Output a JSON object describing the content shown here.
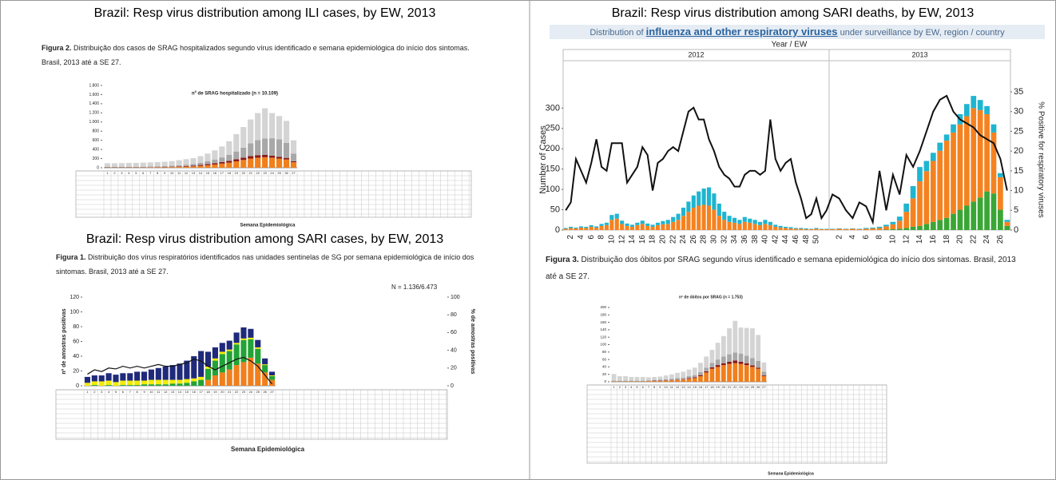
{
  "chart_data": [
    {
      "type": "bar",
      "heading": "Brazil: Resp virus distribution among ILI cases, by EW, 2013",
      "caption_label": "Figura 2.",
      "caption": "Distribuição dos casos de SRAG hospitalizados segundo vírus identificado e semana epidemiológica do início dos sintomas. Brasil, 2013 até a SE 27.",
      "title": "nº de SRAG hospitalizado (n = 10.109)",
      "xlabel": "Semana Epidemiológica",
      "categories": [
        1,
        2,
        3,
        4,
        5,
        6,
        7,
        8,
        9,
        10,
        11,
        12,
        13,
        14,
        15,
        16,
        17,
        18,
        19,
        20,
        21,
        22,
        23,
        24,
        25,
        26,
        27
      ],
      "series": [
        {
          "color": "#f07f1c",
          "values": [
            5,
            5,
            5,
            5,
            6,
            6,
            8,
            10,
            12,
            15,
            20,
            25,
            30,
            40,
            55,
            70,
            90,
            110,
            140,
            170,
            200,
            220,
            230,
            220,
            200,
            180,
            120
          ]
        },
        {
          "color": "#8b1a1a",
          "values": [
            3,
            3,
            3,
            3,
            3,
            4,
            4,
            5,
            6,
            8,
            10,
            12,
            15,
            20,
            25,
            30,
            35,
            40,
            45,
            50,
            55,
            55,
            50,
            45,
            40,
            35,
            20
          ]
        },
        {
          "color": "#a8a8a8",
          "values": [
            10,
            10,
            10,
            12,
            12,
            12,
            15,
            15,
            18,
            20,
            25,
            30,
            35,
            45,
            60,
            80,
            100,
            130,
            170,
            220,
            280,
            330,
            360,
            380,
            380,
            330,
            170
          ]
        },
        {
          "color": "#d4d4d4",
          "values": [
            80,
            80,
            82,
            85,
            85,
            88,
            90,
            92,
            95,
            100,
            110,
            120,
            130,
            150,
            170,
            200,
            240,
            300,
            380,
            450,
            520,
            590,
            660,
            550,
            510,
            480,
            290
          ]
        }
      ],
      "ylim": [
        0,
        1800
      ],
      "yticks": [
        0,
        200,
        400,
        600,
        800,
        {
          "value": 1000,
          "label": "1.000"
        },
        {
          "value": 1200,
          "label": "1.200"
        },
        {
          "value": 1400,
          "label": "1.400"
        },
        {
          "value": 1600,
          "label": "1.600"
        },
        {
          "value": 1800,
          "label": "1.800"
        }
      ]
    },
    {
      "type": "bar",
      "heading": "Brazil: Resp virus distribution among SARI cases, by EW, 2013",
      "caption_label": "Figura 1.",
      "caption": "Distribuição dos vírus respiratórios identificados nas unidades sentinelas de SG por semana epidemiológica de início dos sintomas. Brasil, 2013 até a SE 27.",
      "annotation": "N = 1.136/6.473",
      "ylabel": "nº de amostras positivas",
      "y2label": "% de amostras positivas",
      "xlabel": "Semana Epidemiológica",
      "categories": [
        1,
        2,
        3,
        4,
        5,
        6,
        7,
        8,
        9,
        10,
        11,
        12,
        13,
        14,
        15,
        16,
        17,
        18,
        19,
        20,
        21,
        22,
        23,
        24,
        25,
        26,
        27
      ],
      "series": [
        {
          "color": "#f07f1c",
          "values": [
            0,
            0,
            0,
            0,
            0,
            0,
            0,
            0,
            0,
            0,
            0,
            0,
            0,
            0,
            0,
            0,
            0,
            8,
            14,
            18,
            22,
            28,
            32,
            38,
            30,
            18,
            8
          ]
        },
        {
          "color": "#22a336",
          "values": [
            0,
            1,
            0,
            1,
            0,
            1,
            1,
            1,
            2,
            2,
            2,
            2,
            3,
            3,
            4,
            6,
            8,
            15,
            20,
            25,
            25,
            28,
            30,
            25,
            20,
            10,
            5
          ]
        },
        {
          "color": "#f2ec00",
          "values": [
            4,
            5,
            6,
            6,
            5,
            6,
            6,
            6,
            5,
            6,
            6,
            6,
            5,
            5,
            5,
            4,
            4,
            3,
            3,
            3,
            2,
            2,
            2,
            2,
            2,
            1,
            1
          ]
        },
        {
          "color": "#1f2a7a",
          "values": [
            8,
            8,
            8,
            10,
            10,
            10,
            10,
            12,
            12,
            14,
            16,
            18,
            20,
            22,
            25,
            30,
            35,
            20,
            15,
            12,
            12,
            14,
            15,
            12,
            10,
            8,
            5
          ]
        },
        {
          "type": "line",
          "axis": "y2",
          "color": "#111111",
          "values": [
            13,
            18,
            16,
            20,
            19,
            22,
            20,
            22,
            20,
            22,
            24,
            22,
            22,
            24,
            26,
            30,
            28,
            22,
            18,
            22,
            26,
            30,
            32,
            28,
            22,
            12,
            2
          ]
        }
      ],
      "ylim": [
        0,
        120
      ],
      "yticks": [
        0,
        20,
        40,
        60,
        80,
        100,
        120
      ],
      "y2lim": [
        0,
        100
      ],
      "y2ticks": [
        0,
        20,
        40,
        60,
        80,
        100
      ]
    },
    {
      "type": "bar",
      "heading": "Brazil: Resp virus distribution among SARI deaths, by EW, 2013",
      "title": [
        "Distribution of",
        "influenza and other respiratory viruses",
        "under surveillance by EW, region / country"
      ],
      "year_label": "Year / EW",
      "ylabel": "Number of Cases",
      "y2label": "% Positive for respiratory viruses",
      "groups": [
        {
          "label": "2012",
          "categories": [
            null,
            2,
            null,
            4,
            null,
            6,
            null,
            8,
            null,
            10,
            null,
            12,
            null,
            14,
            null,
            16,
            null,
            18,
            null,
            20,
            null,
            22,
            null,
            24,
            null,
            26,
            null,
            28,
            null,
            30,
            null,
            32,
            null,
            34,
            null,
            36,
            null,
            38,
            null,
            40,
            null,
            42,
            null,
            44,
            null,
            46,
            null,
            48,
            null,
            50,
            null,
            null
          ]
        },
        {
          "label": "2013",
          "categories": [
            null,
            2,
            null,
            4,
            null,
            6,
            null,
            8,
            null,
            10,
            null,
            12,
            null,
            14,
            null,
            16,
            null,
            18,
            null,
            20,
            null,
            22,
            null,
            24,
            null,
            26,
            null
          ]
        }
      ],
      "series": [
        {
          "color": "#3aa635",
          "values": [
            0,
            0,
            0,
            0,
            0,
            0,
            0,
            0,
            0,
            0,
            0,
            0,
            0,
            0,
            0,
            0,
            0,
            0,
            0,
            0,
            0,
            0,
            0,
            0,
            0,
            0,
            0,
            0,
            0,
            0,
            0,
            0,
            0,
            0,
            0,
            0,
            0,
            0,
            0,
            0,
            0,
            0,
            0,
            0,
            0,
            0,
            0,
            0,
            0,
            0,
            0,
            0,
            0,
            0,
            0,
            0,
            0,
            0,
            0,
            0,
            1,
            2,
            3,
            5,
            8,
            10,
            15,
            20,
            25,
            30,
            40,
            50,
            60,
            70,
            80,
            95,
            90,
            50,
            10
          ]
        },
        {
          "color": "#f58220",
          "values": [
            3,
            5,
            4,
            6,
            5,
            8,
            6,
            10,
            12,
            25,
            28,
            15,
            10,
            8,
            12,
            15,
            10,
            8,
            12,
            14,
            15,
            20,
            25,
            35,
            45,
            55,
            60,
            62,
            60,
            50,
            35,
            25,
            20,
            18,
            15,
            20,
            18,
            15,
            12,
            15,
            12,
            8,
            6,
            5,
            4,
            3,
            3,
            2,
            2,
            3,
            2,
            2,
            2,
            3,
            2,
            3,
            2,
            3,
            4,
            5,
            8,
            12,
            20,
            40,
            70,
            110,
            130,
            150,
            170,
            190,
            200,
            210,
            220,
            230,
            215,
            190,
            150,
            80,
            10
          ]
        },
        {
          "color": "#1fb5d0",
          "values": [
            2,
            3,
            2,
            3,
            3,
            4,
            3,
            5,
            6,
            12,
            12,
            8,
            6,
            5,
            6,
            8,
            6,
            5,
            6,
            8,
            10,
            12,
            15,
            20,
            25,
            30,
            35,
            40,
            45,
            40,
            30,
            20,
            15,
            12,
            10,
            12,
            10,
            10,
            8,
            10,
            8,
            5,
            4,
            3,
            3,
            2,
            2,
            2,
            1,
            2,
            1,
            1,
            1,
            1,
            1,
            1,
            1,
            2,
            2,
            3,
            4,
            6,
            10,
            20,
            30,
            35,
            25,
            20,
            20,
            15,
            20,
            25,
            30,
            30,
            25,
            20,
            20,
            10,
            5
          ]
        },
        {
          "type": "line",
          "axis": "y2",
          "color": "#111111",
          "values": [
            5,
            7,
            18,
            15,
            12,
            17,
            23,
            16,
            15,
            22,
            22,
            22,
            12,
            14,
            16,
            21,
            19,
            10,
            17,
            18,
            20,
            21,
            20,
            25,
            30,
            31,
            28,
            28,
            23,
            20,
            16,
            14,
            13,
            11,
            11,
            14,
            15,
            15,
            14,
            15,
            28,
            18,
            15,
            17,
            18,
            12,
            8,
            3,
            4,
            8,
            3,
            5,
            9,
            8,
            5,
            3,
            7,
            6,
            2,
            15,
            5,
            14,
            9,
            19,
            16,
            20,
            25,
            30,
            33,
            34,
            30,
            28,
            27,
            26,
            24,
            23,
            22,
            18,
            10
          ]
        }
      ],
      "ylim": [
        0,
        340
      ],
      "yticks": [
        0,
        50,
        100,
        150,
        200,
        250,
        300
      ],
      "y2lim": [
        0,
        35
      ],
      "y2ticks": [
        0,
        5,
        10,
        15,
        20,
        25,
        30,
        35
      ]
    },
    {
      "type": "bar",
      "caption_label": "Figura 3.",
      "caption": "Distribuição dos óbitos por SRAG segundo vírus identificado e semana epidemiológica do início dos sintomas. Brasil, 2013 até a SE 27.",
      "title": "nº de óbitos por SRAG (n = 1.753)",
      "xlabel": "Semana Epidemiológica",
      "categories": [
        1,
        2,
        3,
        4,
        5,
        6,
        7,
        8,
        9,
        10,
        11,
        12,
        13,
        14,
        15,
        16,
        17,
        18,
        19,
        20,
        21,
        22,
        23,
        24,
        25,
        26,
        27
      ],
      "series": [
        {
          "color": "#f07f1c",
          "values": [
            1,
            1,
            1,
            1,
            1,
            1,
            2,
            2,
            2,
            3,
            4,
            5,
            6,
            8,
            10,
            15,
            25,
            35,
            40,
            45,
            48,
            50,
            48,
            45,
            40,
            35,
            15
          ]
        },
        {
          "color": "#8b1a1a",
          "values": [
            0,
            0,
            0,
            0,
            0,
            0,
            0,
            1,
            1,
            1,
            1,
            1,
            1,
            2,
            2,
            3,
            3,
            4,
            5,
            5,
            6,
            7,
            6,
            5,
            4,
            3,
            2
          ]
        },
        {
          "color": "#a8a8a8",
          "values": [
            2,
            2,
            2,
            2,
            2,
            2,
            2,
            2,
            3,
            3,
            3,
            4,
            4,
            5,
            6,
            8,
            10,
            12,
            15,
            18,
            20,
            22,
            22,
            20,
            20,
            18,
            10
          ]
        },
        {
          "color": "#d4d4d4",
          "values": [
            18,
            12,
            12,
            10,
            10,
            10,
            8,
            8,
            8,
            10,
            12,
            14,
            16,
            18,
            20,
            25,
            30,
            35,
            45,
            55,
            70,
            85,
            70,
            75,
            80,
            70,
            25
          ]
        }
      ],
      "ylim": [
        0,
        200
      ],
      "yticks": [
        0,
        20,
        40,
        60,
        80,
        100,
        120,
        140,
        160,
        180,
        200
      ]
    }
  ]
}
